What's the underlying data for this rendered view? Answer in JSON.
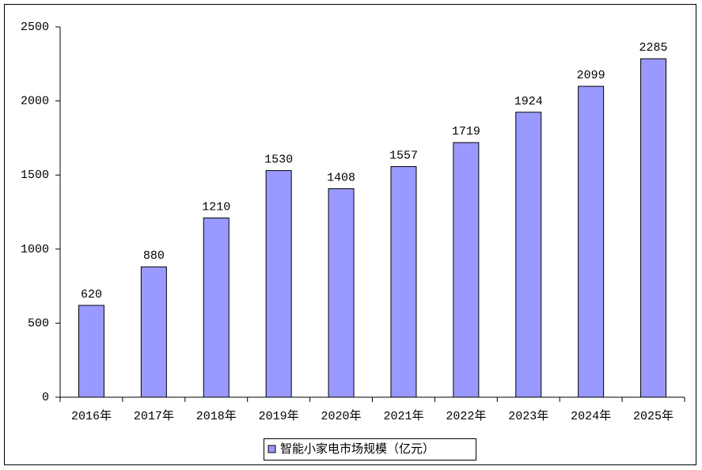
{
  "chart_data": {
    "type": "bar",
    "categories": [
      "2016年",
      "2017年",
      "2018年",
      "2019年",
      "2020年",
      "2021年",
      "2022年",
      "2023年",
      "2024年",
      "2025年"
    ],
    "series": [
      {
        "name": "智能小家电市场规模（亿元）",
        "color": "#9999ff",
        "values": [
          620,
          880,
          1210,
          1530,
          1408,
          1557,
          1719,
          1924,
          2099,
          2285
        ]
      }
    ],
    "ylim": [
      0,
      2500
    ],
    "yticks": [
      0,
      500,
      1000,
      1500,
      2000,
      2500
    ],
    "grid": false,
    "legend": "bottom"
  }
}
